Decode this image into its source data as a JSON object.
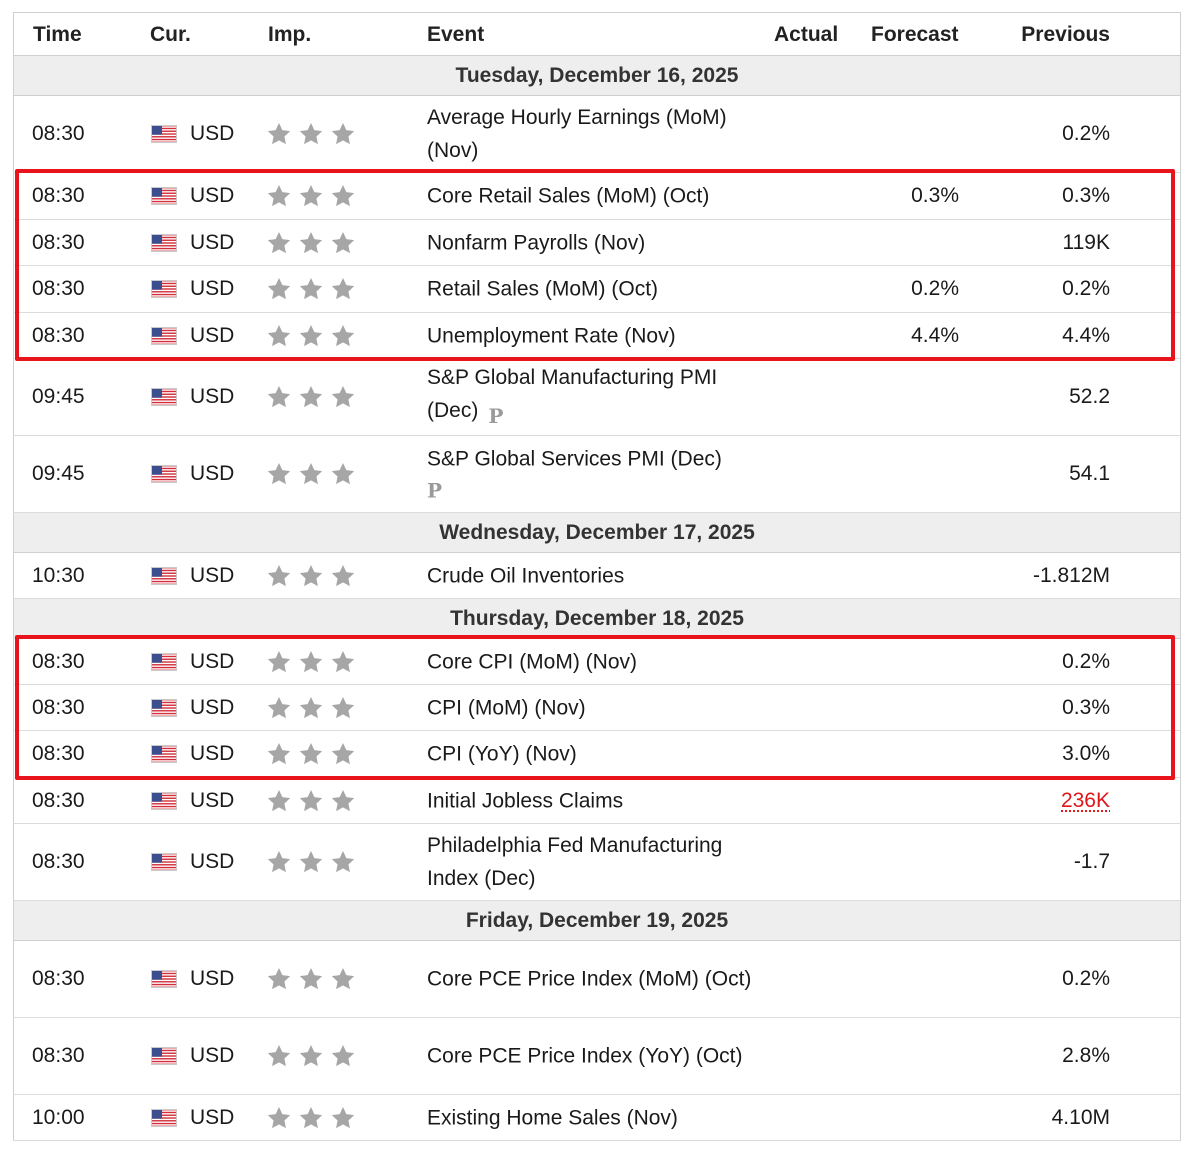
{
  "header": {
    "time": "Time",
    "currency": "Cur.",
    "importance": "Imp.",
    "event": "Event",
    "actual": "Actual",
    "forecast": "Forecast",
    "previous": "Previous"
  },
  "icons": {
    "flag": "us-flag-icon",
    "importance": "star-icon"
  },
  "colors": {
    "highlight": "#e8131b",
    "negative_previous": "#e0161b",
    "star": "#a6a6a6",
    "day_band": "#eeeeee"
  },
  "sections": [
    {
      "date": "Tuesday, December 16, 2025",
      "rows": [
        {
          "time": "08:30",
          "currency": "USD",
          "stars": 3,
          "event": "Average Hourly Earnings (MoM) (Nov)",
          "actual": "",
          "forecast": "",
          "previous": "0.2%"
        },
        {
          "time": "08:30",
          "currency": "USD",
          "stars": 3,
          "event": "Core Retail Sales (MoM) (Oct)",
          "actual": "",
          "forecast": "0.3%",
          "previous": "0.3%"
        },
        {
          "time": "08:30",
          "currency": "USD",
          "stars": 3,
          "event": "Nonfarm Payrolls (Nov)",
          "actual": "",
          "forecast": "",
          "previous": "119K"
        },
        {
          "time": "08:30",
          "currency": "USD",
          "stars": 3,
          "event": "Retail Sales (MoM) (Oct)",
          "actual": "",
          "forecast": "0.2%",
          "previous": "0.2%"
        },
        {
          "time": "08:30",
          "currency": "USD",
          "stars": 3,
          "event": "Unemployment Rate (Nov)",
          "actual": "",
          "forecast": "4.4%",
          "previous": "4.4%"
        },
        {
          "time": "09:45",
          "currency": "USD",
          "stars": 3,
          "event": "S&P Global Manufacturing PMI (Dec)",
          "preliminary": "P",
          "actual": "",
          "forecast": "",
          "previous": "52.2"
        },
        {
          "time": "09:45",
          "currency": "USD",
          "stars": 3,
          "event": "S&P Global Services PMI (Dec)",
          "preliminary": "P",
          "actual": "",
          "forecast": "",
          "previous": "54.1"
        }
      ]
    },
    {
      "date": "Wednesday, December 17, 2025",
      "rows": [
        {
          "time": "10:30",
          "currency": "USD",
          "stars": 3,
          "event": "Crude Oil Inventories",
          "actual": "",
          "forecast": "",
          "previous": "-1.812M"
        }
      ]
    },
    {
      "date": "Thursday, December 18, 2025",
      "rows": [
        {
          "time": "08:30",
          "currency": "USD",
          "stars": 3,
          "event": "Core CPI (MoM) (Nov)",
          "actual": "",
          "forecast": "",
          "previous": "0.2%"
        },
        {
          "time": "08:30",
          "currency": "USD",
          "stars": 3,
          "event": "CPI (MoM) (Nov)",
          "actual": "",
          "forecast": "",
          "previous": "0.3%"
        },
        {
          "time": "08:30",
          "currency": "USD",
          "stars": 3,
          "event": "CPI (YoY) (Nov)",
          "actual": "",
          "forecast": "",
          "previous": "3.0%"
        },
        {
          "time": "08:30",
          "currency": "USD",
          "stars": 3,
          "event": "Initial Jobless Claims",
          "actual": "",
          "forecast": "",
          "previous": "236K",
          "previous_negative": true
        },
        {
          "time": "08:30",
          "currency": "USD",
          "stars": 3,
          "event": "Philadelphia Fed Manufacturing Index (Dec)",
          "actual": "",
          "forecast": "",
          "previous": "-1.7"
        }
      ]
    },
    {
      "date": "Friday, December 19, 2025",
      "rows": [
        {
          "time": "08:30",
          "currency": "USD",
          "stars": 3,
          "event": "Core PCE Price Index (MoM) (Oct)",
          "actual": "",
          "forecast": "",
          "previous": "0.2%"
        },
        {
          "time": "08:30",
          "currency": "USD",
          "stars": 3,
          "event": "Core PCE Price Index (YoY) (Oct)",
          "actual": "",
          "forecast": "",
          "previous": "2.8%"
        },
        {
          "time": "10:00",
          "currency": "USD",
          "stars": 3,
          "event": "Existing Home Sales (Nov)",
          "actual": "",
          "forecast": "",
          "previous": "4.10M"
        }
      ]
    }
  ]
}
